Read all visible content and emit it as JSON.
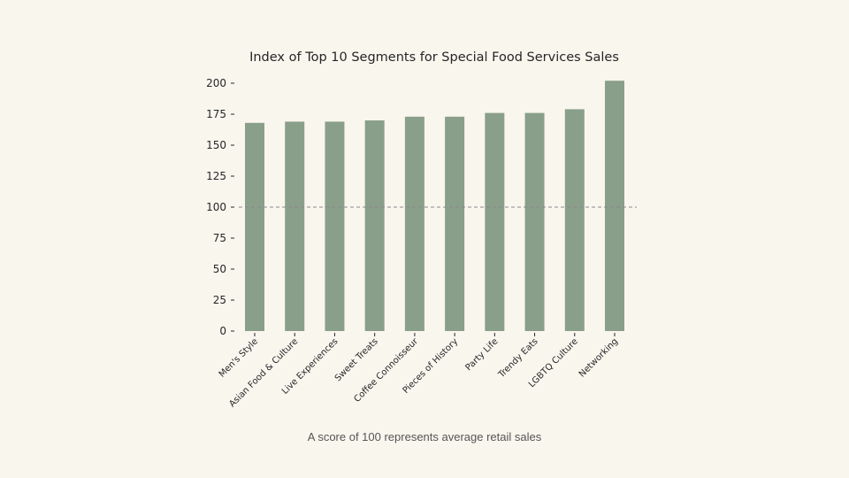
{
  "colors": {
    "background": "#f9f6ee",
    "bar": "#8a9f8a",
    "reference_line": "#8a8a8a",
    "text": "#262626"
  },
  "caption": "A score of 100 represents average retail sales",
  "chart_data": {
    "type": "bar",
    "title": "Index of Top 10 Segments for Special Food Services Sales",
    "xlabel": "",
    "ylabel": "",
    "categories": [
      "Men's Style",
      "Asian Food & Culture",
      "Live Experiences",
      "Sweet Treats",
      "Coffee Connoisseur",
      "Pieces of History",
      "Party Life",
      "Trendy Eats",
      "LGBTQ Culture",
      "Networking"
    ],
    "values": [
      168,
      169,
      169,
      170,
      173,
      173,
      176,
      176,
      179,
      202
    ],
    "ylim": [
      0,
      202
    ],
    "yticks": [
      0,
      25,
      50,
      75,
      100,
      125,
      150,
      175,
      200
    ],
    "reference_line": 100,
    "grid": false,
    "legend": "none"
  }
}
